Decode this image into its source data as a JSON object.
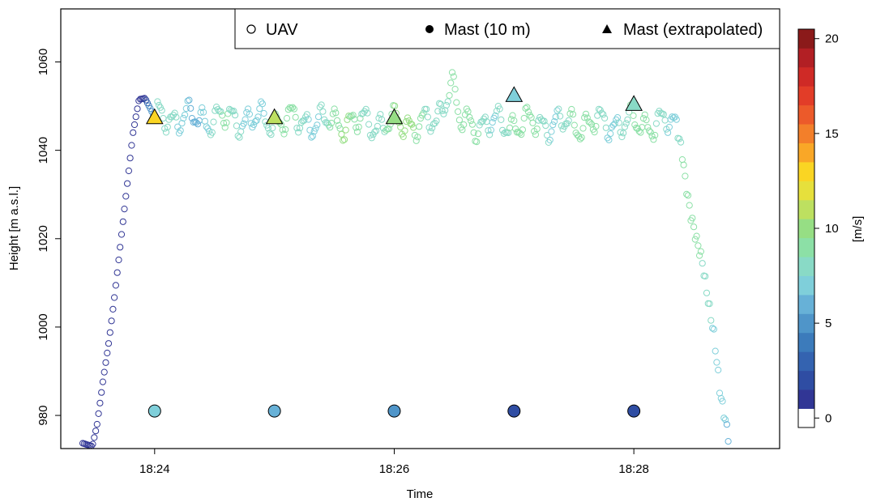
{
  "chart_data": {
    "type": "scatter",
    "title": "",
    "xlabel": "Time",
    "ylabel": "Height [m a.s.l.]",
    "x_ticks": [
      "18:24",
      "18:26",
      "18:28"
    ],
    "x_tick_minutes": [
      24,
      26,
      28
    ],
    "y_ticks": [
      "980",
      "1000",
      "1020",
      "1040",
      "1060"
    ],
    "y_tick_values": [
      980,
      1000,
      1020,
      1040,
      1060
    ],
    "xlim": [
      "18:23:13",
      "18:29:13"
    ],
    "ylim": [
      972.5,
      1072
    ],
    "grid": false,
    "legend": {
      "position": "top-right",
      "entries": [
        {
          "label": "UAV",
          "marker": "open-circle"
        },
        {
          "label": "Mast (10 m)",
          "marker": "filled-circle"
        },
        {
          "label": "Mast (extrapolated)",
          "marker": "filled-triangle"
        }
      ]
    },
    "colorbar": {
      "label": "[m/s]",
      "ticks": [
        "0",
        "5",
        "10",
        "15",
        "20"
      ],
      "tick_values": [
        0,
        5,
        10,
        15,
        20
      ],
      "range": [
        0,
        21
      ],
      "levels": [
        {
          "from": 0,
          "to": 1,
          "color": "#ffffff"
        },
        {
          "from": 1,
          "to": 2,
          "color": "#313695"
        },
        {
          "from": 2,
          "to": 3,
          "color": "#2f4da3"
        },
        {
          "from": 3,
          "to": 4,
          "color": "#3463b0"
        },
        {
          "from": 4,
          "to": 5,
          "color": "#3c7bbb"
        },
        {
          "from": 5,
          "to": 6,
          "color": "#4f95c9"
        },
        {
          "from": 6,
          "to": 7,
          "color": "#67b1d7"
        },
        {
          "from": 7,
          "to": 8,
          "color": "#7fcfda"
        },
        {
          "from": 8,
          "to": 9,
          "color": "#89dac6"
        },
        {
          "from": 9,
          "to": 10,
          "color": "#8ce0a6"
        },
        {
          "from": 10,
          "to": 11,
          "color": "#96de84"
        },
        {
          "from": 11,
          "to": 12,
          "color": "#bde060"
        },
        {
          "from": 12,
          "to": 13,
          "color": "#e6e03c"
        },
        {
          "from": 13,
          "to": 14,
          "color": "#fad523"
        },
        {
          "from": 14,
          "to": 15,
          "color": "#f9a727"
        },
        {
          "from": 15,
          "to": 16,
          "color": "#f37f2a"
        },
        {
          "from": 16,
          "to": 17,
          "color": "#ec5a2a"
        },
        {
          "from": 17,
          "to": 18,
          "color": "#e23d28"
        },
        {
          "from": 18,
          "to": 19,
          "color": "#cf2a26"
        },
        {
          "from": 19,
          "to": 20,
          "color": "#b21f24"
        },
        {
          "from": 20,
          "to": 21,
          "color": "#8b1a1a"
        }
      ]
    },
    "series": [
      {
        "name": "UAV",
        "marker": "open-circle",
        "note_units": "x = minutes after 18:00, y = m a.s.l., speed = m/s",
        "anchors": [
          {
            "x": 23.4,
            "y": 973.7,
            "speed": 1.5
          },
          {
            "x": 23.48,
            "y": 973.0,
            "speed": 1.5
          },
          {
            "x": 23.52,
            "y": 978.0,
            "speed": 1.5
          },
          {
            "x": 23.57,
            "y": 988.0,
            "speed": 1.5
          },
          {
            "x": 23.62,
            "y": 997.0,
            "speed": 1.5
          },
          {
            "x": 23.67,
            "y": 1008.0,
            "speed": 1.5
          },
          {
            "x": 23.72,
            "y": 1020.0,
            "speed": 1.5
          },
          {
            "x": 23.77,
            "y": 1032.0,
            "speed": 1.5
          },
          {
            "x": 23.82,
            "y": 1044.0,
            "speed": 1.6
          },
          {
            "x": 23.87,
            "y": 1051.5,
            "speed": 1.6
          },
          {
            "x": 23.92,
            "y": 1051.8,
            "speed": 2.0
          },
          {
            "x": 24.0,
            "y": 1047.5,
            "speed": 7.5
          },
          {
            "x": 26.0,
            "y": 1046.0,
            "speed": 9.5
          },
          {
            "x": 26.35,
            "y": 1046.0,
            "speed": 9.5
          },
          {
            "x": 26.42,
            "y": 1052.0,
            "speed": 9.0
          },
          {
            "x": 26.48,
            "y": 1055.8,
            "speed": 9.0
          },
          {
            "x": 26.55,
            "y": 1046.0,
            "speed": 9.0
          },
          {
            "x": 28.0,
            "y": 1046.0,
            "speed": 8.8
          },
          {
            "x": 28.35,
            "y": 1046.0,
            "speed": 8.8
          },
          {
            "x": 28.4,
            "y": 1040.0,
            "speed": 9.0
          },
          {
            "x": 28.43,
            "y": 1033.0,
            "speed": 9.0
          },
          {
            "x": 28.47,
            "y": 1026.0,
            "speed": 9.0
          },
          {
            "x": 28.52,
            "y": 1020.0,
            "speed": 9.0
          },
          {
            "x": 28.57,
            "y": 1015.0,
            "speed": 9.0
          },
          {
            "x": 28.62,
            "y": 1006.0,
            "speed": 8.5
          },
          {
            "x": 28.67,
            "y": 998.0,
            "speed": 7.8
          },
          {
            "x": 28.72,
            "y": 985.0,
            "speed": 7.5
          },
          {
            "x": 28.77,
            "y": 978.0,
            "speed": 7.0
          },
          {
            "x": 28.8,
            "y": 973.5,
            "speed": 6.5
          }
        ]
      },
      {
        "name": "Mast (10 m)",
        "marker": "filled-circle",
        "points": [
          {
            "x": 24,
            "y": 981,
            "speed": 7.6
          },
          {
            "x": 25,
            "y": 981,
            "speed": 6.3
          },
          {
            "x": 26,
            "y": 981,
            "speed": 5.3
          },
          {
            "x": 27,
            "y": 981,
            "speed": 2.5
          },
          {
            "x": 28,
            "y": 981,
            "speed": 2.8
          }
        ]
      },
      {
        "name": "Mast (extrapolated)",
        "marker": "filled-triangle",
        "points": [
          {
            "x": 24,
            "y": 1047.5,
            "speed": 13.5
          },
          {
            "x": 25,
            "y": 1047.5,
            "speed": 11.5
          },
          {
            "x": 26,
            "y": 1047.5,
            "speed": 10.5
          },
          {
            "x": 27,
            "y": 1052.5,
            "speed": 7.5
          },
          {
            "x": 28,
            "y": 1050.5,
            "speed": 8.5
          }
        ]
      }
    ]
  }
}
